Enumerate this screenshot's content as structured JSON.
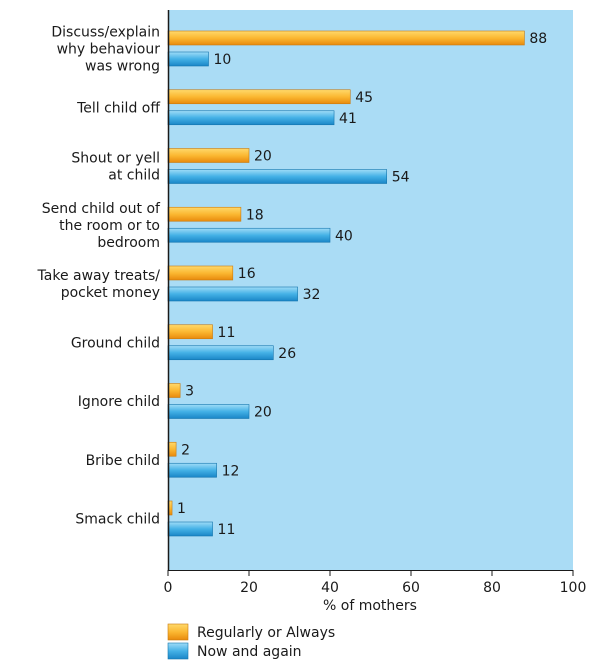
{
  "chart_data": {
    "type": "bar",
    "orientation": "horizontal",
    "categories": [
      [
        "Discuss/explain",
        "why behaviour",
        "was wrong"
      ],
      [
        "Tell child off"
      ],
      [
        "Shout or yell",
        "at child"
      ],
      [
        "Send child out of",
        "the room or to",
        "bedroom"
      ],
      [
        "Take away treats/",
        "pocket money"
      ],
      [
        "Ground child"
      ],
      [
        "Ignore child"
      ],
      [
        "Bribe child"
      ],
      [
        "Smack child"
      ]
    ],
    "series": [
      {
        "name": "Regularly or Always",
        "values": [
          88,
          45,
          20,
          18,
          16,
          11,
          3,
          2,
          1
        ],
        "color": "#f7a21b"
      },
      {
        "name": "Now and again",
        "values": [
          10,
          41,
          54,
          40,
          32,
          26,
          20,
          12,
          11
        ],
        "color": "#2f9fd8"
      }
    ],
    "xlabel": "% of mothers",
    "xlim": [
      0,
      100
    ],
    "xticks": [
      "0",
      "20",
      "40",
      "60",
      "80",
      "100"
    ],
    "plot_background": "#aadcf5",
    "legend_position": "bottom",
    "grid": false
  }
}
